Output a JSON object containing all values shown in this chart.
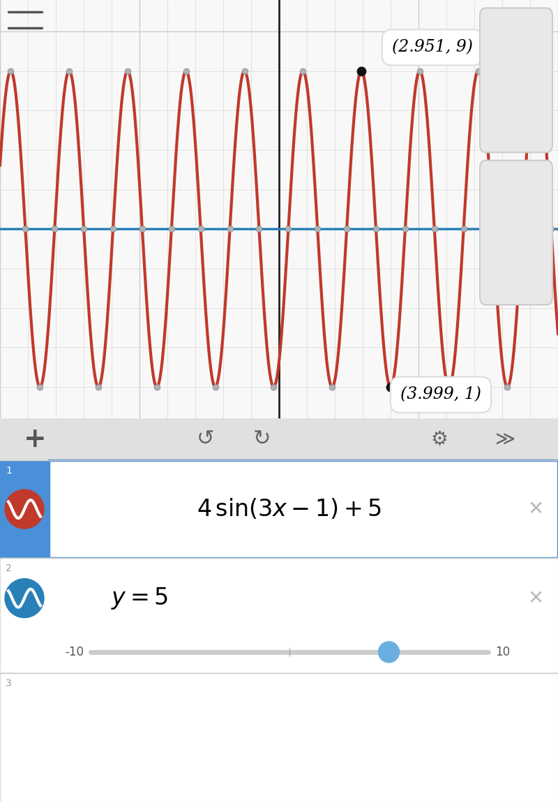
{
  "graph": {
    "xlim": [
      -10,
      10
    ],
    "ylim": [
      0.2,
      10.8
    ],
    "bg_color": "#f8f8f8",
    "grid_minor_color": "#d8d8d8",
    "grid_major_color": "#cccccc",
    "axis_color": "#222222",
    "curve1_color": "#c0392b",
    "curve2_color": "#2980b9",
    "dot_color_gray": "#b0b0b0",
    "dot_color_black": "#111111",
    "tooltip1_text": "(2.951, 9)",
    "tooltip1_x": 2.951,
    "tooltip1_y": 9.0,
    "tooltip2_text": "(3.999, 1)",
    "tooltip2_x": 3.999,
    "tooltip2_y": 1.0,
    "amplitude": 4,
    "angular_freq": 3,
    "phase_shift": 1,
    "vertical_shift": 5,
    "midline_y": 5
  },
  "panel": {
    "bg_color": "#ebebeb",
    "toolbar_color": "#e0e0e0",
    "row1_stripe_color": "#4a90d9",
    "row1_formula": "4\\sin(3x-1)+5",
    "row2_formula": "y=5",
    "icon1_bg": "#c0392b",
    "icon2_bg": "#2980b9",
    "slider_track_color": "#cccccc",
    "slider_thumb_color": "#6aaee0",
    "x_color": "#bbbbbb"
  }
}
